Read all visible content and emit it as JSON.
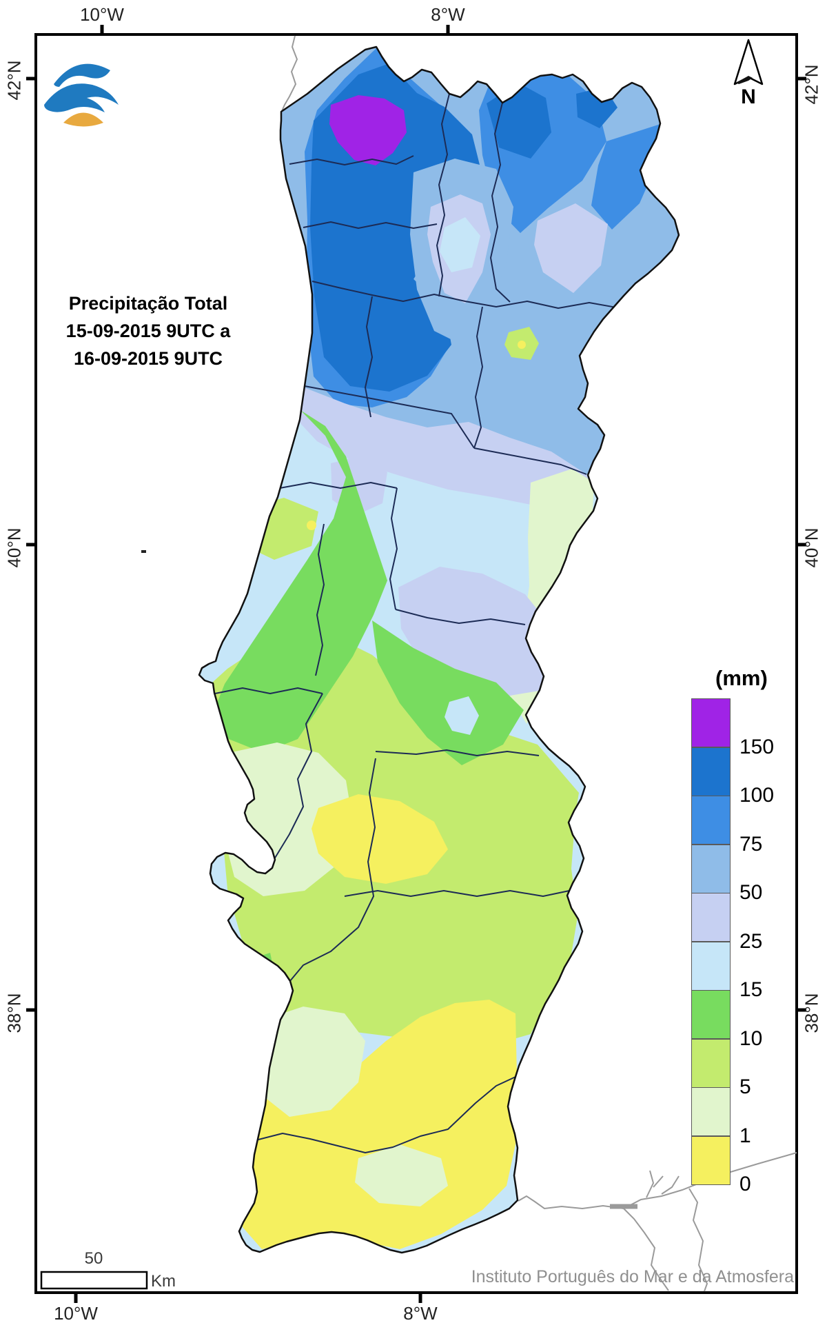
{
  "title": {
    "lines": [
      "Precipitação Total",
      "15-09-2015 9UTC a",
      "16-09-2015 9UTC"
    ]
  },
  "axis": {
    "top": [
      "10°W",
      "8°W"
    ],
    "bottom": [
      "10°W",
      "8°W"
    ],
    "left": [
      "42°N",
      "40°N",
      "38°N"
    ],
    "right": [
      "42°N",
      "40°N",
      "38°N"
    ]
  },
  "legend": {
    "title": "(mm)",
    "labels": [
      "150",
      "100",
      "75",
      "50",
      "25",
      "15",
      "10",
      "5",
      "1",
      "0"
    ],
    "colors": [
      "#A023E6",
      "#1C74CE",
      "#3E8EE4",
      "#8FBCE8",
      "#C6D0F2",
      "#C6E6F8",
      "#78DC5F",
      "#C3EB6E",
      "#E1F5CD",
      "#F5F05F"
    ]
  },
  "compass": {
    "label": "N"
  },
  "scale_bar": {
    "distance": "50",
    "unit": "Km"
  },
  "attribution": "Instituto Português do Mar e da Atmosfera",
  "colors": {
    "logo_blue": "#1F7AC0",
    "logo_orange": "#E8A93F",
    "district_line": "#1c2b55",
    "coast_line": "#111111",
    "foreign_coast": "#9a9a9a",
    "frame": "#000000"
  }
}
